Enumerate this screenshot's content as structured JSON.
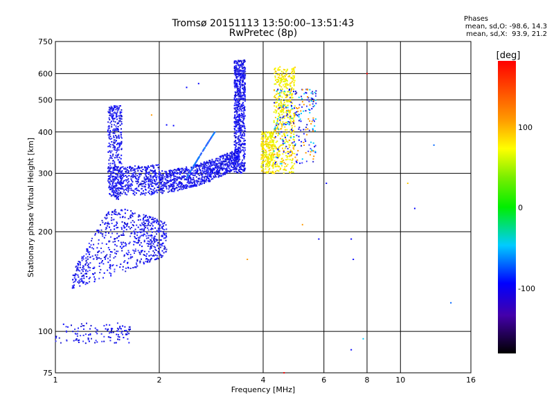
{
  "chart_data": {
    "type": "scatter",
    "title": "Tromsø 20151113 13:50:00–13:51:43",
    "subtitle": "RwPretec (8p)",
    "xlabel": "Frequency [MHz]",
    "ylabel": "Stationary phase Virtual Height [km]",
    "x_scale": "log",
    "y_scale": "log",
    "xlim": [
      1,
      16
    ],
    "ylim": [
      75,
      750
    ],
    "x_ticks": [
      "1",
      "2",
      "4",
      "6",
      "8",
      "10",
      "16"
    ],
    "y_ticks": [
      "75",
      "100",
      "200",
      "300",
      "400",
      "500",
      "600",
      "750"
    ],
    "grid": true,
    "stats": {
      "heading": "Phases",
      "o_line": "mean, sd,O: -98.6, 14.3",
      "x_line": "mean, sd,X:  93.9, 21.2"
    },
    "colorbar": {
      "label": "[deg]",
      "ticks": [
        "100",
        "0",
        "-100"
      ]
    },
    "traces": [
      {
        "region": "F2 O-mode trace",
        "f_range": [
          1.44,
          3.55
        ],
        "h_range": [
          250,
          660
        ],
        "phase_approx": -100
      },
      {
        "region": "F2 X-mode trace",
        "f_range": [
          3.9,
          5.9
        ],
        "h_range": [
          300,
          660
        ],
        "phase_approx": 100
      },
      {
        "region": "F1 O-mode trace",
        "f_range": [
          1.1,
          2.1
        ],
        "h_range": [
          135,
          240
        ],
        "phase_approx": -100
      },
      {
        "region": "E layer trace",
        "f_range": [
          1.0,
          1.65
        ],
        "h_range": [
          92,
          108
        ],
        "phase_approx": -100
      }
    ]
  }
}
